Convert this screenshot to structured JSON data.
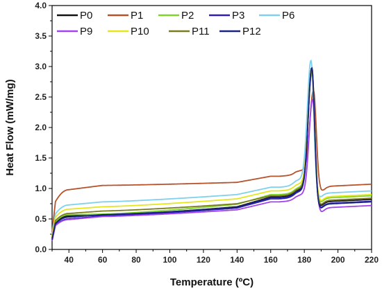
{
  "chart_data": {
    "type": "line",
    "title": "",
    "xlabel": "Temperature (ºC)",
    "ylabel": "Heat Flow (mW/mg)",
    "xlim": [
      30,
      220
    ],
    "ylim": [
      0.0,
      4.0
    ],
    "xticks": [
      40,
      60,
      80,
      100,
      120,
      140,
      160,
      180,
      200,
      220
    ],
    "yticks": [
      0.0,
      0.5,
      1.0,
      1.5,
      2.0,
      2.5,
      3.0,
      3.5,
      4.0
    ],
    "grid": false,
    "legend_position": "top-left",
    "series": [
      {
        "name": "P0",
        "color": "#111111",
        "start": 0.18,
        "plateau": 0.55,
        "at60": 0.56,
        "at140": 0.7,
        "at160": 0.86,
        "peakX": 184.5,
        "peak": 3.05,
        "end": 0.78
      },
      {
        "name": "P1",
        "color": "#b5522a",
        "start": 0.28,
        "plateau": 0.98,
        "at60": 1.05,
        "at140": 1.1,
        "at160": 1.2,
        "peakX": 185.5,
        "peak": 2.75,
        "end": 1.03
      },
      {
        "name": "P2",
        "color": "#7fd42a",
        "start": 0.2,
        "plateau": 0.57,
        "at60": 0.58,
        "at140": 0.74,
        "at160": 0.9,
        "peakX": 184.5,
        "peak": 2.95,
        "end": 0.84
      },
      {
        "name": "P3",
        "color": "#2f1fb0",
        "start": 0.15,
        "plateau": 0.5,
        "at60": 0.55,
        "at140": 0.68,
        "at160": 0.83,
        "peakX": 184.5,
        "peak": 3.0,
        "end": 0.75
      },
      {
        "name": "P6",
        "color": "#7ed0ee",
        "start": 0.25,
        "plateau": 0.73,
        "at60": 0.78,
        "at140": 0.9,
        "at160": 1.02,
        "peakX": 184.0,
        "peak": 3.18,
        "end": 0.92
      },
      {
        "name": "P9",
        "color": "#a142f0",
        "start": 0.14,
        "plateau": 0.49,
        "at60": 0.54,
        "at140": 0.65,
        "at160": 0.78,
        "peakX": 185.0,
        "peak": 2.55,
        "end": 0.68
      },
      {
        "name": "P10",
        "color": "#e6e61c",
        "start": 0.22,
        "plateau": 0.66,
        "at60": 0.7,
        "at140": 0.83,
        "at160": 0.96,
        "peakX": 184.5,
        "peak": 3.05,
        "end": 0.86
      },
      {
        "name": "P11",
        "color": "#7a7a1e",
        "start": 0.19,
        "plateau": 0.59,
        "at60": 0.63,
        "at140": 0.75,
        "at160": 0.88,
        "peakX": 184.5,
        "peak": 3.0,
        "end": 0.8
      },
      {
        "name": "P12",
        "color": "#1a237e",
        "start": 0.16,
        "plateau": 0.53,
        "at60": 0.57,
        "at140": 0.69,
        "at160": 0.85,
        "peakX": 184.5,
        "peak": 3.07,
        "end": 0.74
      }
    ]
  }
}
